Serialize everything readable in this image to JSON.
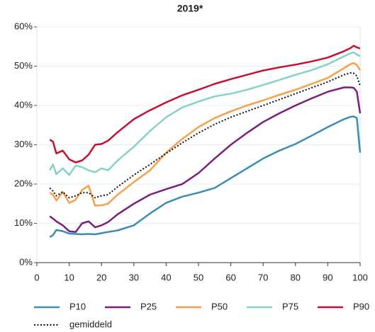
{
  "chart_data": {
    "type": "line",
    "title": "2019*",
    "x": [
      4,
      5,
      6,
      8,
      10,
      12,
      14,
      16,
      18,
      20,
      22,
      25,
      30,
      35,
      40,
      45,
      50,
      55,
      60,
      65,
      70,
      75,
      80,
      85,
      90,
      95,
      97,
      98,
      99,
      100
    ],
    "xlim": [
      0,
      100
    ],
    "xticks": [
      0,
      10,
      20,
      30,
      40,
      50,
      60,
      70,
      80,
      90,
      100
    ],
    "ylim": [
      0,
      60
    ],
    "yticks": [
      {
        "value": 0,
        "label": "0%"
      },
      {
        "value": 10,
        "label": "10%"
      },
      {
        "value": 20,
        "label": "20%"
      },
      {
        "value": 30,
        "label": "30%"
      },
      {
        "value": 40,
        "label": "40%"
      },
      {
        "value": 50,
        "label": "50%"
      },
      {
        "value": 60,
        "label": "60%"
      }
    ],
    "grid": true,
    "series": [
      {
        "name": "P10",
        "color": "#3a8db5",
        "style": "solid",
        "values": [
          6.5,
          7,
          8.3,
          8,
          7.4,
          7.3,
          7.2,
          7.3,
          7.2,
          7.5,
          7.8,
          8.2,
          9.5,
          12.5,
          15.2,
          16.8,
          17.8,
          19,
          21.5,
          24,
          26.5,
          28.5,
          30.2,
          32.3,
          34.5,
          36.5,
          37.1,
          37.2,
          36.8,
          28
        ]
      },
      {
        "name": "P25",
        "color": "#7b1f7a",
        "style": "solid",
        "values": [
          11.8,
          11.2,
          10.5,
          9.5,
          8,
          7.8,
          10,
          10.5,
          9,
          9.5,
          10.3,
          12.3,
          15,
          17.3,
          18.7,
          20,
          22.8,
          26.5,
          30,
          33,
          35.8,
          38,
          40,
          41.8,
          43.5,
          44.6,
          44.6,
          44.5,
          43.5,
          38
        ]
      },
      {
        "name": "P50",
        "color": "#f5a14a",
        "style": "solid",
        "values": [
          17.8,
          17.3,
          15.8,
          18,
          15.2,
          16,
          18.5,
          19.6,
          14.5,
          14.6,
          15,
          17.3,
          20.5,
          23.5,
          28,
          31.5,
          34.5,
          36.8,
          38.5,
          40,
          41.3,
          42.7,
          44,
          45.5,
          47,
          49.5,
          50.5,
          50.8,
          50.3,
          49
        ]
      },
      {
        "name": "P75",
        "color": "#88d1c6",
        "style": "solid",
        "values": [
          23.5,
          25,
          22.5,
          24,
          22.3,
          24.7,
          24.3,
          23.5,
          23,
          24,
          23.5,
          26,
          29.5,
          33.5,
          37,
          39.5,
          41,
          42.3,
          43,
          44,
          45.2,
          46.5,
          47.8,
          49,
          50.5,
          52.5,
          53.3,
          53.5,
          53,
          52.5
        ]
      },
      {
        "name": "P90",
        "color": "#c8102e",
        "style": "solid",
        "values": [
          31.3,
          30.8,
          27.8,
          28.5,
          26.3,
          25.5,
          26,
          27.5,
          30,
          30.2,
          31,
          33.2,
          36.5,
          38.8,
          40.8,
          42.6,
          44,
          45.5,
          46.7,
          47.8,
          48.9,
          49.7,
          50.4,
          51.2,
          52.2,
          53.8,
          54.6,
          55.2,
          54.8,
          54.5
        ]
      },
      {
        "name": "gemiddeld",
        "color": "#111111",
        "style": "dotted",
        "values": [
          19,
          18.2,
          17,
          18,
          16.5,
          17,
          17.8,
          17.8,
          16.5,
          17,
          17.3,
          19.3,
          22.3,
          25,
          27.8,
          30.5,
          33,
          35.2,
          37,
          38.5,
          40,
          41.5,
          43,
          44.5,
          46,
          47.8,
          48.3,
          48.2,
          47.5,
          45
        ]
      }
    ]
  }
}
